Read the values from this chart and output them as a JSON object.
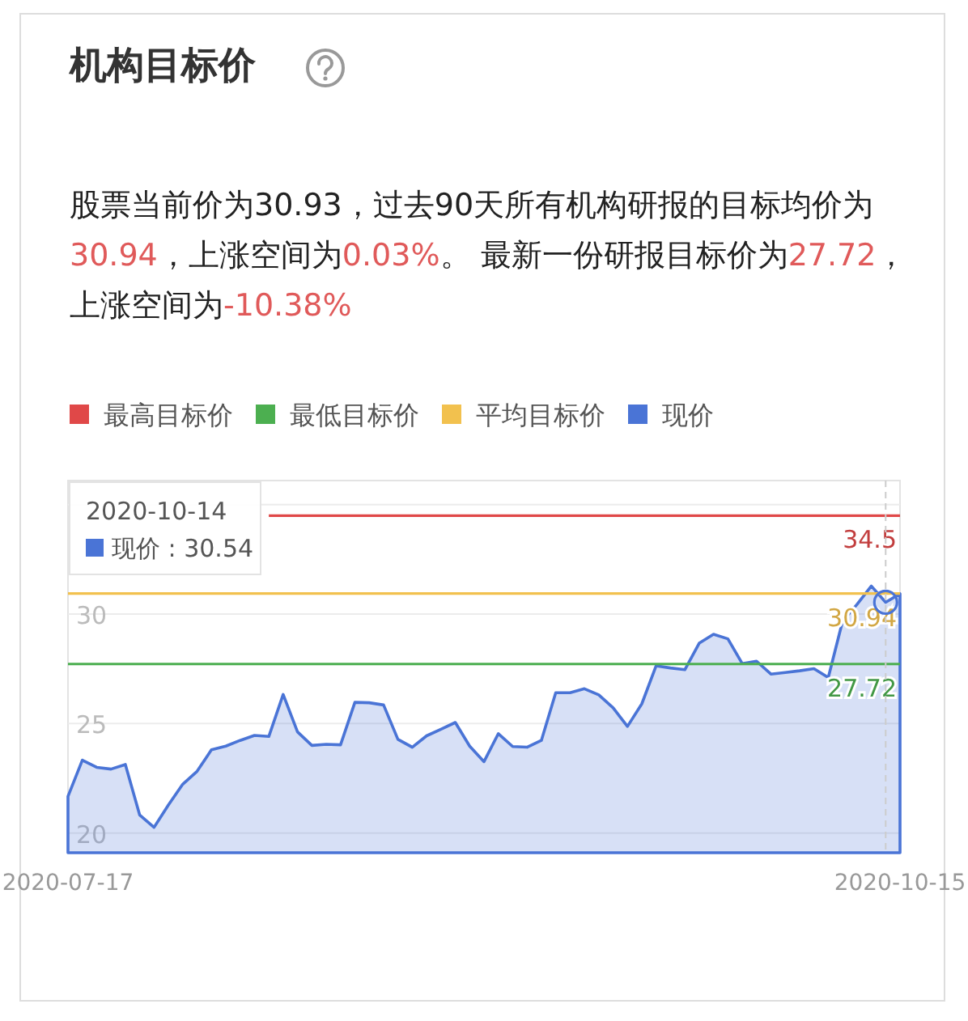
{
  "chart_data": {
    "type": "area",
    "title": "机构目标价",
    "subtitle": "股票当前价为30.93，过去90天所有机构研报的目标均价为30.94，上涨空间为0.03%。 最新一份研报目标价为27.72，上涨空间为-10.38%",
    "categories": [
      "2020-07-17",
      null,
      null,
      null,
      null,
      null,
      null,
      null,
      null,
      null,
      null,
      null,
      null,
      null,
      null,
      null,
      null,
      null,
      null,
      null,
      null,
      null,
      null,
      null,
      null,
      null,
      null,
      null,
      null,
      null,
      null,
      null,
      null,
      null,
      null,
      null,
      null,
      null,
      null,
      null,
      null,
      null,
      null,
      null,
      null,
      null,
      null,
      null,
      null,
      null,
      null,
      null,
      null,
      null,
      null,
      null,
      null,
      null,
      "2020-10-15"
    ],
    "series": [
      {
        "name": "最高目标价",
        "type": "line",
        "color": "#e04848",
        "values": [
          null,
          null,
          null,
          null,
          null,
          null,
          null,
          null,
          null,
          null,
          null,
          null,
          null,
          null,
          34.5,
          34.5,
          34.5,
          34.5,
          34.5,
          34.5,
          34.5,
          34.5,
          34.5,
          34.5,
          34.5,
          34.5,
          34.5,
          34.5,
          34.5,
          34.5,
          34.5,
          34.5,
          34.5,
          34.5,
          34.5,
          34.5,
          34.5,
          34.5,
          34.5,
          34.5,
          34.5,
          34.5,
          34.5,
          34.5,
          34.5,
          34.5,
          34.5,
          34.5,
          34.5,
          34.5,
          34.5,
          34.5,
          34.5,
          34.5,
          34.5,
          34.5,
          34.5,
          34.5,
          34.5
        ],
        "value_labels": [
          null,
          null,
          null,
          null,
          null,
          null,
          null,
          null,
          null,
          null,
          null,
          null,
          null,
          null,
          null,
          null,
          null,
          null,
          null,
          null,
          null,
          null,
          null,
          null,
          null,
          null,
          null,
          null,
          null,
          null,
          null,
          null,
          null,
          null,
          null,
          null,
          null,
          null,
          null,
          null,
          null,
          null,
          null,
          null,
          null,
          null,
          null,
          null,
          null,
          null,
          null,
          null,
          null,
          null,
          null,
          null,
          null,
          null,
          "34.5"
        ]
      },
      {
        "name": "最低目标价",
        "type": "line",
        "color": "#4caf50",
        "values": [
          27.72,
          27.72,
          27.72,
          27.72,
          27.72,
          27.72,
          27.72,
          27.72,
          27.72,
          27.72,
          27.72,
          27.72,
          27.72,
          27.72,
          27.72,
          27.72,
          27.72,
          27.72,
          27.72,
          27.72,
          27.72,
          27.72,
          27.72,
          27.72,
          27.72,
          27.72,
          27.72,
          27.72,
          27.72,
          27.72,
          27.72,
          27.72,
          27.72,
          27.72,
          27.72,
          27.72,
          27.72,
          27.72,
          27.72,
          27.72,
          27.72,
          27.72,
          27.72,
          27.72,
          27.72,
          27.72,
          27.72,
          27.72,
          27.72,
          27.72,
          27.72,
          27.72,
          27.72,
          27.72,
          27.72,
          27.72,
          27.72,
          27.72,
          27.72
        ],
        "value_labels": [
          null,
          null,
          null,
          null,
          null,
          null,
          null,
          null,
          null,
          null,
          null,
          null,
          null,
          null,
          null,
          null,
          null,
          null,
          null,
          null,
          null,
          null,
          null,
          null,
          null,
          null,
          null,
          null,
          null,
          null,
          null,
          null,
          null,
          null,
          null,
          null,
          null,
          null,
          null,
          null,
          null,
          null,
          null,
          null,
          null,
          null,
          null,
          null,
          null,
          null,
          null,
          null,
          null,
          null,
          null,
          null,
          null,
          null,
          "27.72"
        ]
      },
      {
        "name": "平均目标价",
        "type": "line",
        "color": "#f2c14e",
        "values": [
          30.94,
          30.94,
          30.94,
          30.94,
          30.94,
          30.94,
          30.94,
          30.94,
          30.94,
          30.94,
          30.94,
          30.94,
          30.94,
          30.94,
          30.94,
          30.94,
          30.94,
          30.94,
          30.94,
          30.94,
          30.94,
          30.94,
          30.94,
          30.94,
          30.94,
          30.94,
          30.94,
          30.94,
          30.94,
          30.94,
          30.94,
          30.94,
          30.94,
          30.94,
          30.94,
          30.94,
          30.94,
          30.94,
          30.94,
          30.94,
          30.94,
          30.94,
          30.94,
          30.94,
          30.94,
          30.94,
          30.94,
          30.94,
          30.94,
          30.94,
          30.94,
          30.94,
          30.94,
          30.94,
          30.94,
          30.94,
          30.94,
          30.94,
          30.94
        ],
        "value_labels": [
          null,
          null,
          null,
          null,
          null,
          null,
          null,
          null,
          null,
          null,
          null,
          null,
          null,
          null,
          null,
          null,
          null,
          null,
          null,
          null,
          null,
          null,
          null,
          null,
          null,
          null,
          null,
          null,
          null,
          null,
          null,
          null,
          null,
          null,
          null,
          null,
          null,
          null,
          null,
          null,
          null,
          null,
          null,
          null,
          null,
          null,
          null,
          null,
          null,
          null,
          null,
          null,
          null,
          null,
          null,
          null,
          null,
          null,
          "30.94"
        ]
      },
      {
        "name": "现价",
        "color": "#4a74d6",
        "values": [
          21.67,
          23.33,
          23.0,
          22.92,
          23.13,
          20.82,
          20.26,
          21.28,
          22.23,
          22.82,
          23.8,
          23.97,
          24.23,
          24.46,
          24.41,
          26.33,
          24.62,
          24.0,
          24.05,
          24.03,
          25.97,
          25.95,
          25.85,
          24.28,
          23.92,
          24.44,
          24.74,
          25.05,
          23.97,
          23.26,
          24.54,
          23.95,
          23.92,
          24.23,
          26.41,
          26.41,
          26.59,
          26.31,
          25.72,
          24.87,
          25.9,
          27.64,
          27.54,
          27.46,
          28.67,
          29.08,
          28.87,
          27.74,
          27.85,
          27.26,
          27.33,
          27.41,
          27.51,
          27.1,
          29.69,
          30.44,
          31.28,
          30.54,
          30.93
        ]
      }
    ],
    "ylim": [
      19.1,
      36.1
    ],
    "yticks": [
      20,
      25,
      30,
      {
        "value": 35,
        "label": null
      }
    ],
    "grid": "y",
    "legend": "top left",
    "annotations": [
      "2020-10-14",
      "现价 : 30.54"
    ]
  }
}
